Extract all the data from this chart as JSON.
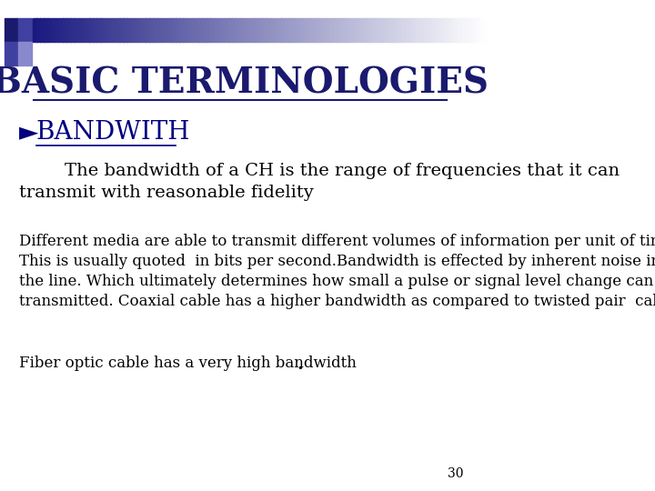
{
  "title": "BASIC TERMINOLOGIES",
  "title_color": "#1a1a6e",
  "title_fontsize": 28,
  "background_color": "#ffffff",
  "heading_bullet": "►",
  "heading_text": "BANDWITH",
  "heading_color": "#000080",
  "heading_fontsize": 20,
  "para1": "        The bandwidth of a CH is the range of frequencies that it can\ntransmit with reasonable fidelity",
  "para1_fontsize": 14,
  "para2": "Different media are able to transmit different volumes of information per unit of time.\nThis is usually quoted  in bits per second.Bandwidth is effected by inherent noise in\nthe line. Which ultimately determines how small a pulse or signal level change can be\ntransmitted. Coaxial cable has a higher bandwidth as compared to twisted pair  cable.",
  "para2_fontsize": 12,
  "para3": "Fiber optic cable has a very high bandwidth",
  "para3_bold_end": ".",
  "para3_fontsize": 12,
  "page_number": "30",
  "page_number_fontsize": 10,
  "decoration_colors": [
    "#1a1a6e",
    "#4040a0",
    "#8888cc",
    "#ccccee"
  ],
  "text_color": "#000000"
}
